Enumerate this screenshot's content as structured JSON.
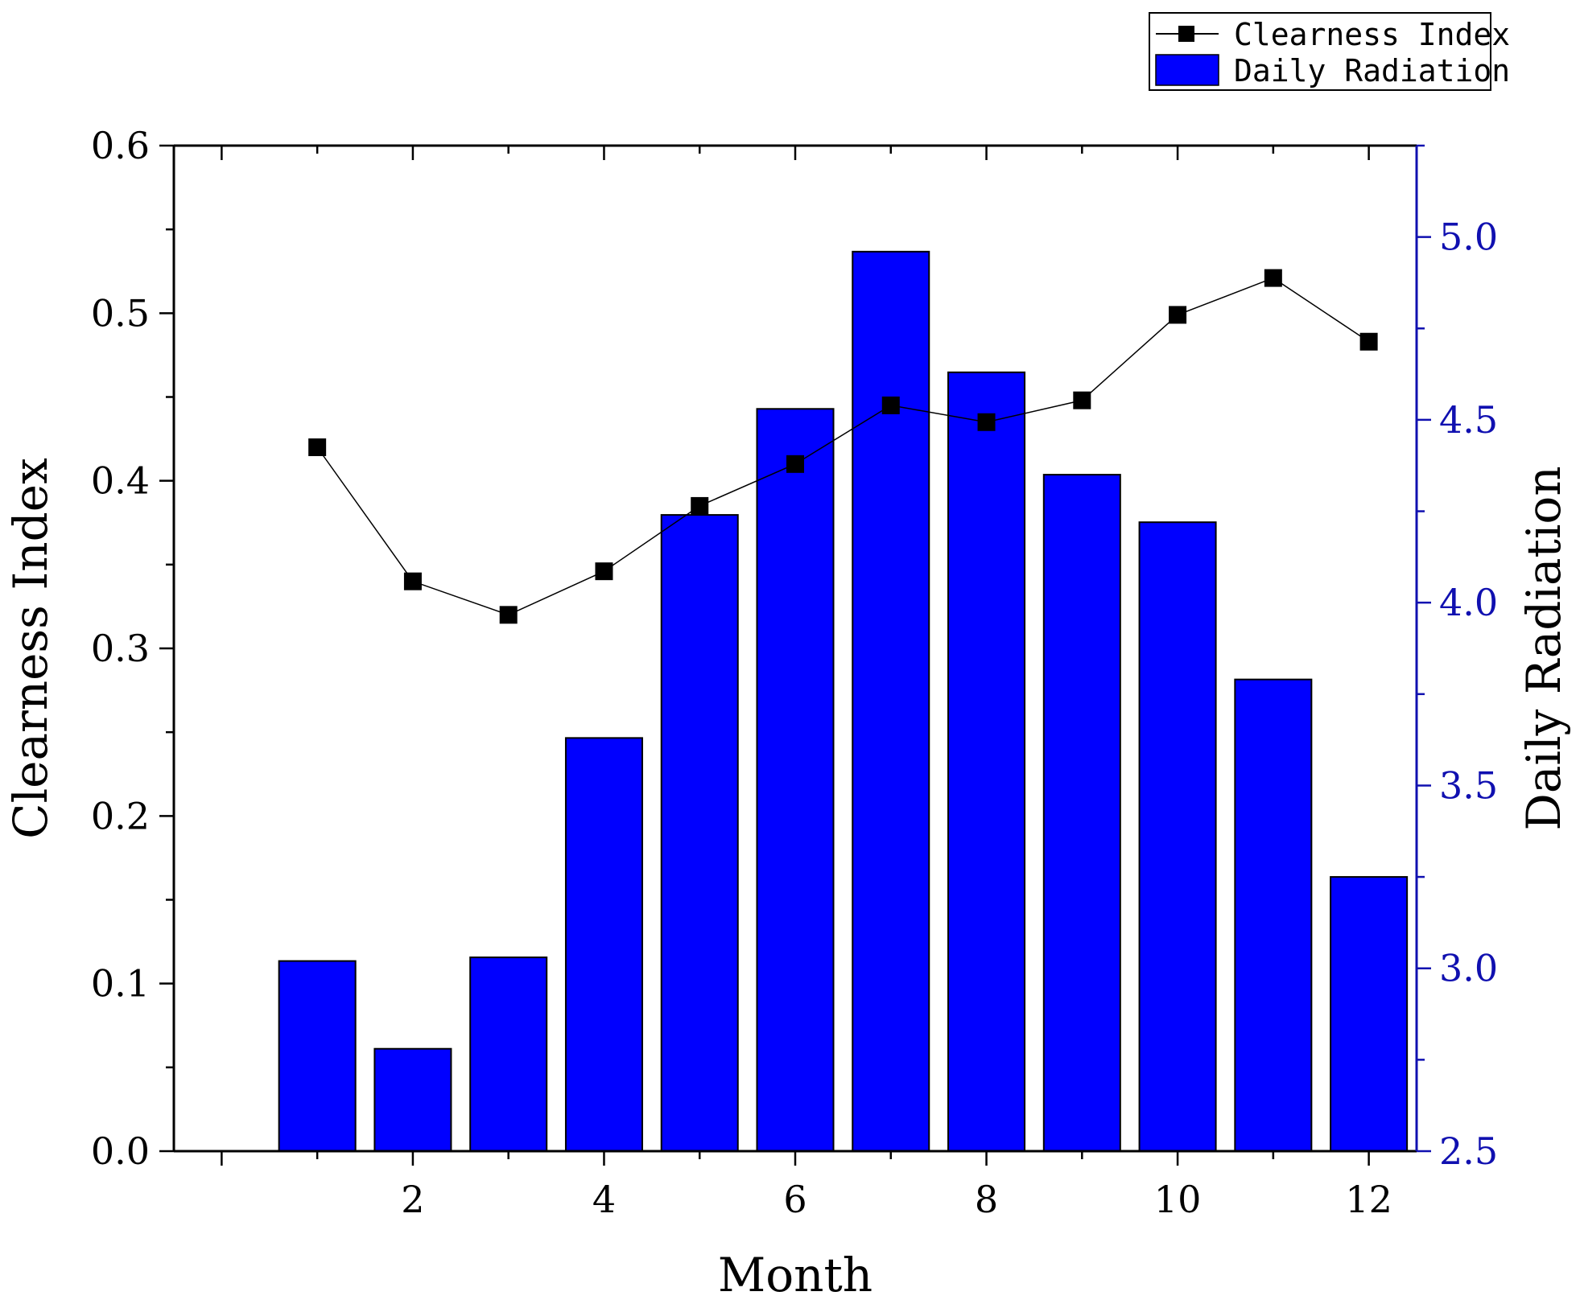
{
  "chart_data": {
    "type": "bar+line",
    "x": [
      1,
      2,
      3,
      4,
      5,
      6,
      7,
      8,
      9,
      10,
      11,
      12
    ],
    "xlabel": "Month",
    "xlim": [
      -0.5,
      12.5
    ],
    "xticks": [
      2,
      4,
      6,
      8,
      10,
      12
    ],
    "series": [
      {
        "name": "Clearness Index",
        "kind": "line",
        "axis": "left",
        "marker": "square",
        "color": "#000000",
        "values": [
          0.42,
          0.34,
          0.32,
          0.346,
          0.385,
          0.41,
          0.445,
          0.435,
          0.448,
          0.499,
          0.521,
          0.483
        ]
      },
      {
        "name": "Daily Radiation",
        "kind": "bar",
        "axis": "right",
        "color": "#0000ff",
        "values": [
          3.02,
          2.78,
          3.03,
          3.63,
          4.24,
          4.53,
          4.96,
          4.63,
          4.35,
          4.22,
          3.79,
          3.25
        ]
      }
    ],
    "ylabel_left": "Clearness Index",
    "ylim_left": [
      0.0,
      0.6
    ],
    "yticks_left": [
      "0.0",
      "0.1",
      "0.2",
      "0.3",
      "0.4",
      "0.5",
      "0.6"
    ],
    "ylabel_right": "Daily Radiation",
    "ylim_right": [
      2.5,
      5.25
    ],
    "yticks_right": [
      "2.5",
      "3.0",
      "3.5",
      "4.0",
      "4.5",
      "5.0"
    ],
    "right_axis_color": "#1010b0",
    "legend": {
      "position": "top-right",
      "entries": [
        "Clearness Index",
        "Daily Radiation"
      ]
    },
    "grid": false
  }
}
